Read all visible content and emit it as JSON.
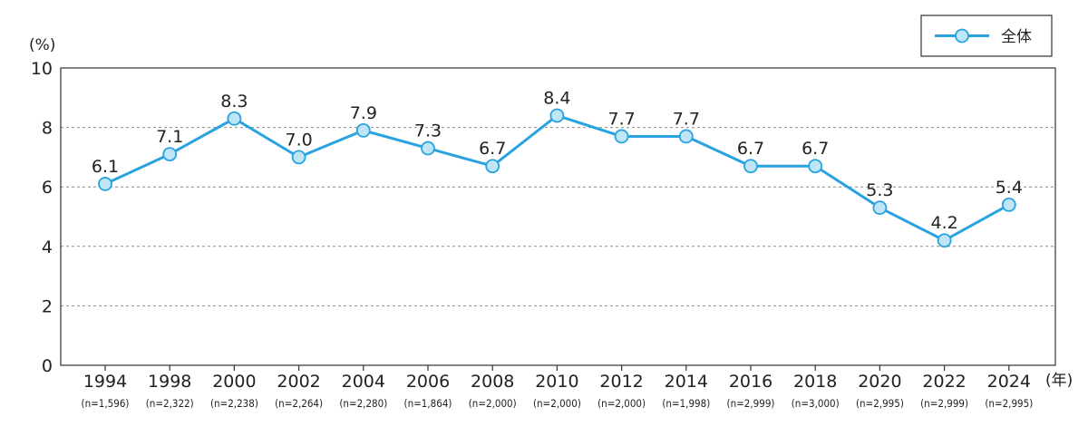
{
  "chart_data": {
    "type": "line",
    "ylabel": "(%)",
    "xlabel": "(年)",
    "ylim": [
      0,
      10
    ],
    "yticks": [
      0,
      2,
      4,
      6,
      8,
      10
    ],
    "grid": true,
    "legend_position": "top-right",
    "categories": [
      "1994",
      "1998",
      "2000",
      "2002",
      "2004",
      "2006",
      "2008",
      "2010",
      "2012",
      "2014",
      "2016",
      "2018",
      "2020",
      "2022",
      "2024"
    ],
    "sample_sizes": [
      "(n=1,596)",
      "(n=2,322)",
      "(n=2,238)",
      "(n=2,264)",
      "(n=2,280)",
      "(n=1,864)",
      "(n=2,000)",
      "(n=2,000)",
      "(n=2,000)",
      "(n=1,998)",
      "(n=2,999)",
      "(n=3,000)",
      "(n=2,995)",
      "(n=2,999)",
      "(n=2,995)"
    ],
    "series": [
      {
        "name": "全体",
        "color": "#29a3e0",
        "marker_fill": "#bfe6f7",
        "values": [
          6.1,
          7.1,
          8.3,
          7.0,
          7.9,
          7.3,
          6.7,
          8.4,
          7.7,
          7.7,
          6.7,
          6.7,
          5.3,
          4.2,
          5.4
        ],
        "labels": [
          "6.1",
          "7.1",
          "8.3",
          "7.0",
          "7.9",
          "7.3",
          "6.7",
          "8.4",
          "7.7",
          "7.7",
          "6.7",
          "6.7",
          "5.3",
          "4.2",
          "5.4"
        ]
      }
    ]
  }
}
